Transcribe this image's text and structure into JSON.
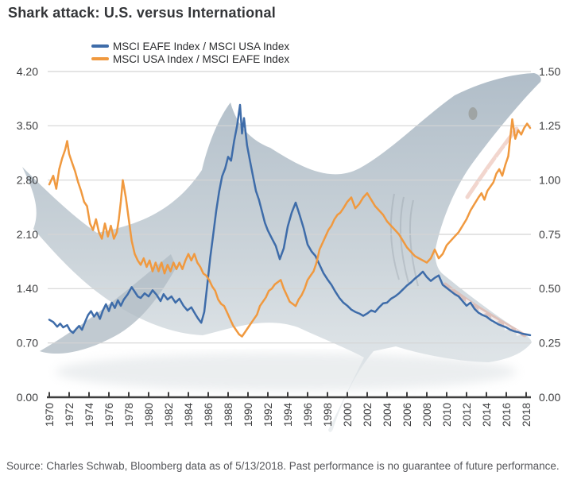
{
  "title": "Shark attack: U.S. versus International",
  "legend": {
    "items": [
      {
        "label": "MSCI EAFE Index / MSCI USA Index",
        "color": "#3e6ca9"
      },
      {
        "label": "MSCI USA Index / MSCI EAFE Index",
        "color": "#f0993f"
      }
    ]
  },
  "source_note": "Source: Charles Schwab, Bloomberg data as of 5/13/2018.  Past performance is no guarantee of future performance.",
  "watermark": "great-white-shark-silhouette",
  "chart_data": {
    "type": "line",
    "title": "Shark attack: U.S. versus International",
    "grid": true,
    "legend_position": "top-left",
    "x_axis": {
      "ticks": [
        "1970",
        "1972",
        "1974",
        "1976",
        "1978",
        "1980",
        "1982",
        "1984",
        "1986",
        "1988",
        "1990",
        "1992",
        "1994",
        "1996",
        "1998",
        "2000",
        "2002",
        "2004",
        "2006",
        "2008",
        "2010",
        "2012",
        "2014",
        "2016",
        "2018"
      ],
      "range": [
        1969.8,
        2018.6
      ],
      "tick_label_rotation_deg": -90
    },
    "y_axis_left": {
      "ticks": [
        "4.20",
        "3.50",
        "2.80",
        "2.10",
        "1.40",
        "0.70",
        "0.00"
      ],
      "range": [
        0,
        4.2
      ]
    },
    "y_axis_right": {
      "ticks": [
        "1.50",
        "1.25",
        "1.00",
        "0.75",
        "0.50",
        "0.25",
        "0.00"
      ],
      "range": [
        0,
        1.5
      ]
    },
    "series": [
      {
        "name": "MSCI EAFE Index / MSCI USA Index",
        "axis": "left",
        "color": "#3e6ca9",
        "points": [
          [
            1970.0,
            1.0
          ],
          [
            1970.4,
            0.97
          ],
          [
            1970.8,
            0.91
          ],
          [
            1971.1,
            0.95
          ],
          [
            1971.4,
            0.9
          ],
          [
            1971.8,
            0.93
          ],
          [
            1972.1,
            0.86
          ],
          [
            1972.4,
            0.83
          ],
          [
            1972.7,
            0.88
          ],
          [
            1973.0,
            0.92
          ],
          [
            1973.3,
            0.87
          ],
          [
            1973.6,
            0.97
          ],
          [
            1973.9,
            1.06
          ],
          [
            1974.2,
            1.11
          ],
          [
            1974.5,
            1.04
          ],
          [
            1974.8,
            1.09
          ],
          [
            1975.1,
            1.01
          ],
          [
            1975.4,
            1.12
          ],
          [
            1975.7,
            1.2
          ],
          [
            1976.0,
            1.11
          ],
          [
            1976.3,
            1.22
          ],
          [
            1976.6,
            1.15
          ],
          [
            1976.9,
            1.25
          ],
          [
            1977.2,
            1.18
          ],
          [
            1977.5,
            1.26
          ],
          [
            1977.9,
            1.33
          ],
          [
            1978.3,
            1.42
          ],
          [
            1978.6,
            1.36
          ],
          [
            1978.9,
            1.3
          ],
          [
            1979.2,
            1.28
          ],
          [
            1979.6,
            1.34
          ],
          [
            1980.0,
            1.3
          ],
          [
            1980.4,
            1.38
          ],
          [
            1980.8,
            1.32
          ],
          [
            1981.2,
            1.24
          ],
          [
            1981.5,
            1.33
          ],
          [
            1981.9,
            1.26
          ],
          [
            1982.3,
            1.3
          ],
          [
            1982.7,
            1.22
          ],
          [
            1983.1,
            1.27
          ],
          [
            1983.5,
            1.18
          ],
          [
            1983.9,
            1.12
          ],
          [
            1984.3,
            1.16
          ],
          [
            1984.7,
            1.07
          ],
          [
            1985.0,
            1.01
          ],
          [
            1985.3,
            0.96
          ],
          [
            1985.6,
            1.1
          ],
          [
            1985.9,
            1.45
          ],
          [
            1986.2,
            1.8
          ],
          [
            1986.5,
            2.1
          ],
          [
            1986.8,
            2.4
          ],
          [
            1987.1,
            2.65
          ],
          [
            1987.4,
            2.85
          ],
          [
            1987.7,
            2.95
          ],
          [
            1988.0,
            3.1
          ],
          [
            1988.3,
            3.05
          ],
          [
            1988.6,
            3.3
          ],
          [
            1988.9,
            3.5
          ],
          [
            1989.2,
            3.77
          ],
          [
            1989.4,
            3.4
          ],
          [
            1989.6,
            3.6
          ],
          [
            1989.9,
            3.25
          ],
          [
            1990.2,
            3.05
          ],
          [
            1990.5,
            2.85
          ],
          [
            1990.8,
            2.66
          ],
          [
            1991.1,
            2.55
          ],
          [
            1991.4,
            2.4
          ],
          [
            1991.7,
            2.25
          ],
          [
            1992.0,
            2.15
          ],
          [
            1992.4,
            2.05
          ],
          [
            1992.8,
            1.95
          ],
          [
            1993.2,
            1.78
          ],
          [
            1993.6,
            1.92
          ],
          [
            1994.0,
            2.2
          ],
          [
            1994.4,
            2.38
          ],
          [
            1994.8,
            2.51
          ],
          [
            1995.2,
            2.35
          ],
          [
            1995.6,
            2.18
          ],
          [
            1996.0,
            1.97
          ],
          [
            1996.4,
            1.88
          ],
          [
            1996.8,
            1.82
          ],
          [
            1997.2,
            1.71
          ],
          [
            1997.6,
            1.6
          ],
          [
            1998.0,
            1.52
          ],
          [
            1998.4,
            1.45
          ],
          [
            1998.8,
            1.36
          ],
          [
            1999.2,
            1.28
          ],
          [
            1999.6,
            1.22
          ],
          [
            2000.0,
            1.18
          ],
          [
            2000.4,
            1.13
          ],
          [
            2000.8,
            1.1
          ],
          [
            2001.2,
            1.08
          ],
          [
            2001.6,
            1.05
          ],
          [
            2002.0,
            1.08
          ],
          [
            2002.4,
            1.12
          ],
          [
            2002.8,
            1.1
          ],
          [
            2003.2,
            1.16
          ],
          [
            2003.6,
            1.21
          ],
          [
            2004.0,
            1.22
          ],
          [
            2004.4,
            1.27
          ],
          [
            2004.8,
            1.3
          ],
          [
            2005.2,
            1.34
          ],
          [
            2005.6,
            1.39
          ],
          [
            2006.0,
            1.44
          ],
          [
            2006.4,
            1.48
          ],
          [
            2006.8,
            1.53
          ],
          [
            2007.2,
            1.57
          ],
          [
            2007.6,
            1.62
          ],
          [
            2008.0,
            1.55
          ],
          [
            2008.4,
            1.5
          ],
          [
            2008.8,
            1.54
          ],
          [
            2009.2,
            1.57
          ],
          [
            2009.6,
            1.45
          ],
          [
            2010.0,
            1.41
          ],
          [
            2010.4,
            1.37
          ],
          [
            2010.8,
            1.33
          ],
          [
            2011.2,
            1.3
          ],
          [
            2011.6,
            1.24
          ],
          [
            2012.0,
            1.18
          ],
          [
            2012.4,
            1.22
          ],
          [
            2012.8,
            1.14
          ],
          [
            2013.2,
            1.09
          ],
          [
            2013.6,
            1.06
          ],
          [
            2014.0,
            1.04
          ],
          [
            2014.4,
            1.0
          ],
          [
            2014.8,
            0.97
          ],
          [
            2015.2,
            0.94
          ],
          [
            2015.6,
            0.92
          ],
          [
            2016.0,
            0.9
          ],
          [
            2016.4,
            0.87
          ],
          [
            2016.8,
            0.85
          ],
          [
            2017.2,
            0.84
          ],
          [
            2017.6,
            0.82
          ],
          [
            2018.0,
            0.81
          ],
          [
            2018.4,
            0.8
          ]
        ]
      },
      {
        "name": "MSCI USA Index / MSCI EAFE Index",
        "axis": "right",
        "color": "#f0993f",
        "points": [
          [
            1970.0,
            0.98
          ],
          [
            1970.4,
            1.02
          ],
          [
            1970.7,
            0.96
          ],
          [
            1971.0,
            1.05
          ],
          [
            1971.3,
            1.1
          ],
          [
            1971.6,
            1.14
          ],
          [
            1971.8,
            1.18
          ],
          [
            1972.0,
            1.12
          ],
          [
            1972.3,
            1.08
          ],
          [
            1972.6,
            1.04
          ],
          [
            1972.9,
            0.99
          ],
          [
            1973.2,
            0.95
          ],
          [
            1973.5,
            0.9
          ],
          [
            1973.8,
            0.88
          ],
          [
            1974.1,
            0.8
          ],
          [
            1974.4,
            0.77
          ],
          [
            1974.7,
            0.82
          ],
          [
            1975.0,
            0.76
          ],
          [
            1975.3,
            0.73
          ],
          [
            1975.6,
            0.8
          ],
          [
            1975.9,
            0.74
          ],
          [
            1976.2,
            0.79
          ],
          [
            1976.5,
            0.73
          ],
          [
            1976.8,
            0.76
          ],
          [
            1977.0,
            0.82
          ],
          [
            1977.2,
            0.9
          ],
          [
            1977.4,
            1.0
          ],
          [
            1977.7,
            0.92
          ],
          [
            1978.0,
            0.82
          ],
          [
            1978.3,
            0.72
          ],
          [
            1978.6,
            0.66
          ],
          [
            1978.9,
            0.63
          ],
          [
            1979.2,
            0.61
          ],
          [
            1979.5,
            0.64
          ],
          [
            1979.8,
            0.6
          ],
          [
            1980.1,
            0.63
          ],
          [
            1980.4,
            0.58
          ],
          [
            1980.7,
            0.62
          ],
          [
            1981.0,
            0.58
          ],
          [
            1981.3,
            0.62
          ],
          [
            1981.6,
            0.57
          ],
          [
            1981.9,
            0.61
          ],
          [
            1982.2,
            0.58
          ],
          [
            1982.5,
            0.62
          ],
          [
            1982.8,
            0.59
          ],
          [
            1983.1,
            0.62
          ],
          [
            1983.4,
            0.59
          ],
          [
            1983.7,
            0.63
          ],
          [
            1984.0,
            0.66
          ],
          [
            1984.3,
            0.63
          ],
          [
            1984.6,
            0.66
          ],
          [
            1984.9,
            0.62
          ],
          [
            1985.2,
            0.6
          ],
          [
            1985.5,
            0.57
          ],
          [
            1985.8,
            0.56
          ],
          [
            1986.1,
            0.54
          ],
          [
            1986.4,
            0.51
          ],
          [
            1986.7,
            0.49
          ],
          [
            1987.0,
            0.45
          ],
          [
            1987.3,
            0.43
          ],
          [
            1987.6,
            0.42
          ],
          [
            1987.9,
            0.39
          ],
          [
            1988.2,
            0.36
          ],
          [
            1988.5,
            0.33
          ],
          [
            1988.8,
            0.31
          ],
          [
            1989.1,
            0.29
          ],
          [
            1989.4,
            0.28
          ],
          [
            1989.7,
            0.3
          ],
          [
            1990.0,
            0.32
          ],
          [
            1990.3,
            0.34
          ],
          [
            1990.6,
            0.36
          ],
          [
            1990.9,
            0.38
          ],
          [
            1991.2,
            0.42
          ],
          [
            1991.5,
            0.44
          ],
          [
            1991.8,
            0.46
          ],
          [
            1992.1,
            0.49
          ],
          [
            1992.4,
            0.5
          ],
          [
            1992.7,
            0.52
          ],
          [
            1993.0,
            0.53
          ],
          [
            1993.3,
            0.54
          ],
          [
            1993.6,
            0.5
          ],
          [
            1993.9,
            0.47
          ],
          [
            1994.2,
            0.44
          ],
          [
            1994.5,
            0.43
          ],
          [
            1994.8,
            0.42
          ],
          [
            1995.1,
            0.45
          ],
          [
            1995.4,
            0.47
          ],
          [
            1995.7,
            0.5
          ],
          [
            1996.0,
            0.54
          ],
          [
            1996.3,
            0.56
          ],
          [
            1996.6,
            0.58
          ],
          [
            1996.9,
            0.62
          ],
          [
            1997.2,
            0.68
          ],
          [
            1997.5,
            0.71
          ],
          [
            1997.8,
            0.74
          ],
          [
            1998.1,
            0.77
          ],
          [
            1998.4,
            0.79
          ],
          [
            1998.7,
            0.82
          ],
          [
            1999.0,
            0.84
          ],
          [
            1999.3,
            0.85
          ],
          [
            1999.6,
            0.87
          ],
          [
            2000.0,
            0.9
          ],
          [
            2000.4,
            0.92
          ],
          [
            2000.8,
            0.87
          ],
          [
            2001.2,
            0.89
          ],
          [
            2001.6,
            0.92
          ],
          [
            2002.0,
            0.94
          ],
          [
            2002.4,
            0.91
          ],
          [
            2002.8,
            0.88
          ],
          [
            2003.2,
            0.86
          ],
          [
            2003.6,
            0.84
          ],
          [
            2004.0,
            0.81
          ],
          [
            2004.4,
            0.79
          ],
          [
            2004.8,
            0.77
          ],
          [
            2005.2,
            0.75
          ],
          [
            2005.6,
            0.72
          ],
          [
            2006.0,
            0.69
          ],
          [
            2006.4,
            0.67
          ],
          [
            2006.8,
            0.65
          ],
          [
            2007.2,
            0.64
          ],
          [
            2007.6,
            0.63
          ],
          [
            2008.0,
            0.62
          ],
          [
            2008.4,
            0.64
          ],
          [
            2008.8,
            0.68
          ],
          [
            2009.2,
            0.64
          ],
          [
            2009.6,
            0.66
          ],
          [
            2010.0,
            0.7
          ],
          [
            2010.4,
            0.72
          ],
          [
            2010.8,
            0.74
          ],
          [
            2011.2,
            0.76
          ],
          [
            2011.6,
            0.79
          ],
          [
            2012.0,
            0.82
          ],
          [
            2012.4,
            0.86
          ],
          [
            2012.8,
            0.89
          ],
          [
            2013.2,
            0.92
          ],
          [
            2013.5,
            0.94
          ],
          [
            2013.8,
            0.91
          ],
          [
            2014.1,
            0.95
          ],
          [
            2014.4,
            0.97
          ],
          [
            2014.7,
            0.99
          ],
          [
            2015.0,
            1.03
          ],
          [
            2015.3,
            1.05
          ],
          [
            2015.6,
            1.02
          ],
          [
            2015.9,
            1.07
          ],
          [
            2016.2,
            1.11
          ],
          [
            2016.6,
            1.28
          ],
          [
            2016.9,
            1.19
          ],
          [
            2017.2,
            1.23
          ],
          [
            2017.5,
            1.21
          ],
          [
            2017.8,
            1.24
          ],
          [
            2018.1,
            1.26
          ],
          [
            2018.4,
            1.24
          ]
        ]
      }
    ]
  }
}
